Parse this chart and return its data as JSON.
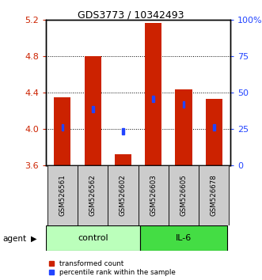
{
  "title": "GDS3773 / 10342493",
  "samples": [
    "GSM526561",
    "GSM526562",
    "GSM526602",
    "GSM526603",
    "GSM526605",
    "GSM526678"
  ],
  "bar_tops": [
    4.35,
    4.8,
    3.72,
    5.16,
    4.43,
    4.33
  ],
  "bar_bottom": 3.6,
  "blue_y": [
    4.02,
    4.22,
    3.97,
    4.33,
    4.27,
    4.02
  ],
  "ymin": 3.6,
  "ymax": 5.2,
  "yticks_left": [
    3.6,
    4.0,
    4.4,
    4.8,
    5.2
  ],
  "yticks_right": [
    0,
    25,
    50,
    75,
    100
  ],
  "ytick_labels_right": [
    "0",
    "25",
    "50",
    "75",
    "100%"
  ],
  "bar_color": "#cc2200",
  "blue_color": "#2244ff",
  "control_color": "#bbffbb",
  "il6_color": "#44dd44",
  "group_box_color": "#cccccc",
  "legend_red_label": "transformed count",
  "legend_blue_label": "percentile rank within the sample",
  "agent_label": "agent",
  "ylabel_left_color": "#cc2200",
  "ylabel_right_color": "#2244ff",
  "bar_width": 0.55,
  "blue_sq_size": 0.07
}
